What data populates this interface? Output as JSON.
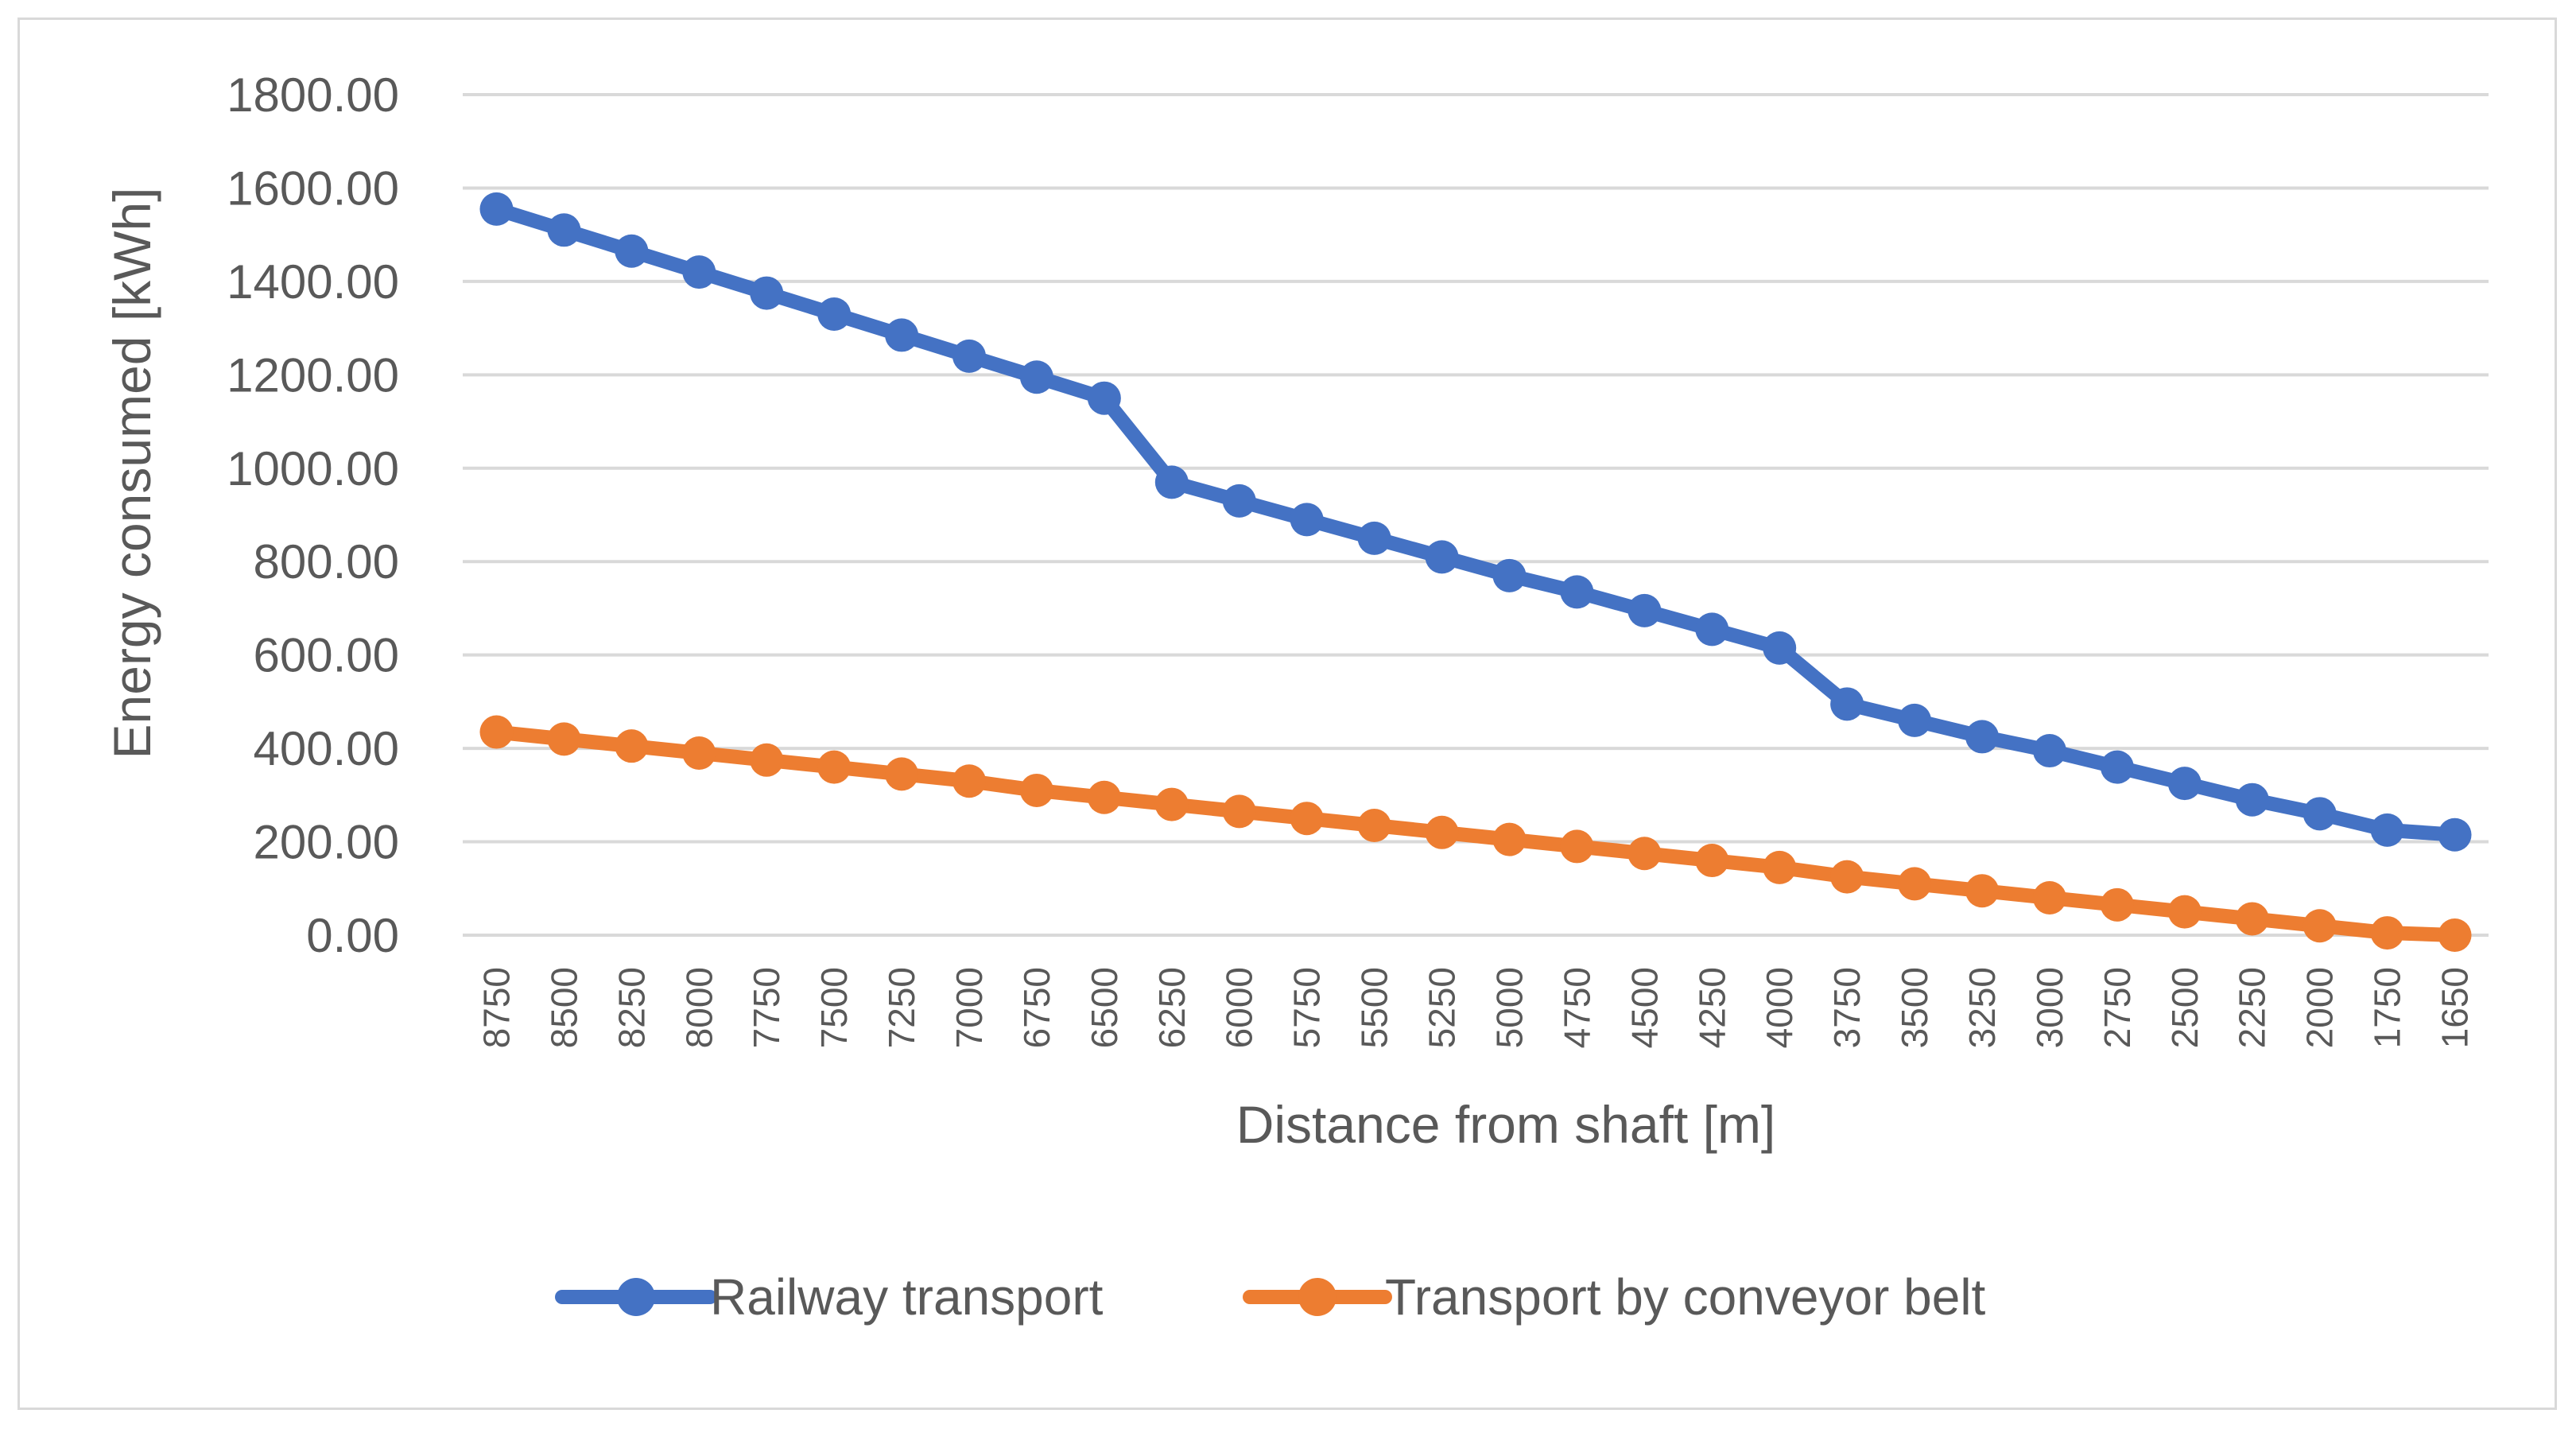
{
  "chart_data": {
    "type": "line",
    "title": "",
    "xlabel": "Distance from shaft [m]",
    "ylabel": "Energy consumed [kWh]",
    "ylim": [
      0,
      1800
    ],
    "yticks": [
      "0.00",
      "200.00",
      "400.00",
      "600.00",
      "800.00",
      "1000.00",
      "1200.00",
      "1400.00",
      "1600.00",
      "1800.00"
    ],
    "grid": true,
    "legend_position": "bottom",
    "categories": [
      "8750",
      "8500",
      "8250",
      "8000",
      "7750",
      "7500",
      "7250",
      "7000",
      "6750",
      "6500",
      "6250",
      "6000",
      "5750",
      "5500",
      "5250",
      "5000",
      "4750",
      "4500",
      "4250",
      "4000",
      "3750",
      "3500",
      "3250",
      "3000",
      "2750",
      "2500",
      "2250",
      "2000",
      "1750",
      "1650"
    ],
    "series": [
      {
        "name": "Railway transport",
        "color": "#4472C4",
        "values": [
          1555,
          1510,
          1465,
          1420,
          1375,
          1330,
          1285,
          1240,
          1195,
          1150,
          970,
          930,
          890,
          850,
          810,
          770,
          735,
          695,
          655,
          615,
          495,
          460,
          425,
          395,
          360,
          325,
          290,
          260,
          225,
          215
        ]
      },
      {
        "name": "Transport by conveyor belt",
        "color": "#ED7D31",
        "values": [
          435,
          420,
          405,
          390,
          375,
          360,
          345,
          330,
          310,
          295,
          280,
          265,
          250,
          235,
          220,
          205,
          190,
          175,
          160,
          145,
          125,
          110,
          95,
          80,
          65,
          50,
          35,
          20,
          5,
          0
        ]
      }
    ]
  }
}
